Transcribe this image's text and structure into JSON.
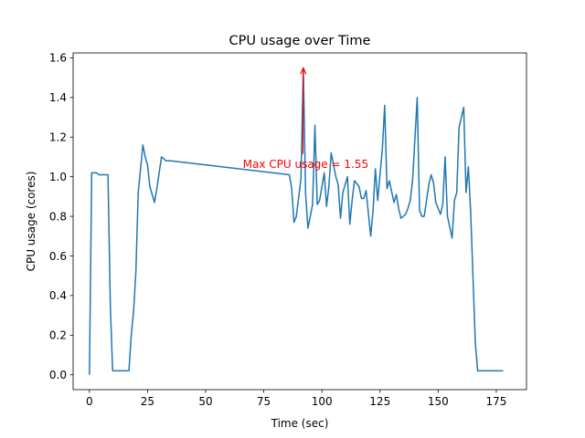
{
  "chart_data": {
    "type": "line",
    "title": "CPU usage over Time",
    "xlabel": "Time (sec)",
    "ylabel": "CPU usage (cores)",
    "xlim": [
      -7,
      188
    ],
    "ylim": [
      -0.075,
      1.625
    ],
    "xticks": [
      0,
      25,
      50,
      75,
      100,
      125,
      150,
      175
    ],
    "yticks": [
      0.0,
      0.2,
      0.4,
      0.6,
      0.8,
      1.0,
      1.2,
      1.4,
      1.6
    ],
    "xtick_labels": [
      "0",
      "25",
      "50",
      "75",
      "100",
      "125",
      "150",
      "175"
    ],
    "ytick_labels": [
      "0.0",
      "0.2",
      "0.4",
      "0.6",
      "0.8",
      "1.0",
      "1.2",
      "1.4",
      "1.6"
    ],
    "grid": false,
    "series": [
      {
        "name": "CPU usage",
        "color": "#1f77b4",
        "x": [
          0,
          1,
          3,
          4,
          6,
          8,
          9,
          10,
          11,
          13,
          15,
          17,
          18,
          19,
          20,
          21,
          23,
          24,
          25,
          26,
          28,
          29,
          31,
          33,
          34,
          35,
          86,
          87,
          88,
          89,
          91,
          92,
          93,
          94,
          96,
          97,
          98,
          99,
          101,
          102,
          103,
          104,
          106,
          107,
          108,
          109,
          111,
          112,
          113,
          114,
          116,
          117,
          118,
          119,
          121,
          122,
          123,
          124,
          126,
          127,
          128,
          129,
          131,
          132,
          133,
          134,
          136,
          137,
          138,
          139,
          141,
          142,
          143,
          144,
          146,
          147,
          148,
          149,
          151,
          152,
          153,
          154,
          156,
          157,
          158,
          159,
          161,
          162,
          163,
          164,
          166,
          167,
          168,
          169,
          171,
          172,
          173,
          174,
          176,
          177,
          178
        ],
        "y": [
          0.0,
          1.02,
          1.02,
          1.01,
          1.01,
          1.01,
          0.35,
          0.02,
          0.02,
          0.02,
          0.02,
          0.02,
          0.2,
          0.32,
          0.52,
          0.92,
          1.16,
          1.1,
          1.06,
          0.95,
          0.87,
          0.94,
          1.1,
          1.08,
          1.08,
          1.08,
          1.01,
          0.94,
          0.77,
          0.8,
          0.99,
          1.55,
          0.91,
          0.74,
          0.86,
          1.26,
          0.86,
          0.88,
          1.02,
          0.85,
          0.95,
          1.12,
          1.0,
          0.96,
          0.79,
          0.92,
          1.0,
          0.76,
          0.88,
          0.98,
          0.95,
          0.89,
          0.89,
          0.93,
          0.7,
          0.83,
          1.04,
          0.88,
          1.14,
          1.36,
          0.94,
          0.98,
          0.87,
          0.91,
          0.84,
          0.79,
          0.81,
          0.84,
          0.88,
          0.98,
          1.4,
          0.83,
          0.8,
          0.8,
          0.96,
          1.01,
          0.97,
          0.87,
          0.81,
          0.86,
          1.1,
          0.8,
          0.69,
          0.88,
          0.92,
          1.25,
          1.35,
          0.92,
          1.05,
          0.82,
          0.16,
          0.02,
          0.02,
          0.02,
          0.02,
          0.02,
          0.02,
          0.02,
          0.02,
          0.02,
          0.02
        ]
      }
    ],
    "annotation": {
      "text": "Max CPU usage = 1.55",
      "color": "#ff0000",
      "point": [
        92,
        1.55
      ],
      "text_at": [
        93,
        1.05
      ]
    }
  }
}
